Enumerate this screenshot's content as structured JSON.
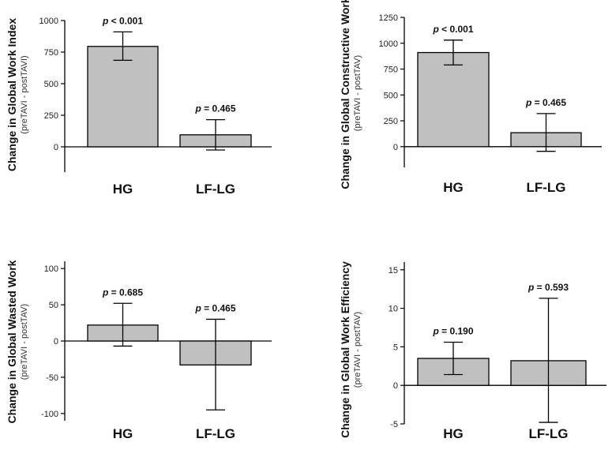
{
  "chart_data": [
    {
      "type": "bar",
      "ylabel": "Change in Global Work Index",
      "ylabel_sub": "(preTAVI - postTAVI)",
      "categories": [
        "HG",
        "LF-LG"
      ],
      "values": [
        795,
        95
      ],
      "error_low": [
        685,
        -25
      ],
      "error_high": [
        910,
        215
      ],
      "p_values": [
        "= 0.465"
      ],
      "p_labels": [
        {
          "p": "p",
          "rest": " < 0.001"
        },
        {
          "p": "p",
          "rest": " = 0.465"
        }
      ],
      "ylim": [
        -200,
        1000
      ],
      "yticks": [
        0,
        250,
        500,
        750,
        1000
      ],
      "bar_color": "#c0c0c0"
    },
    {
      "type": "bar",
      "ylabel": "Change in Global Constructive Work",
      "ylabel_sub": "(preTAVI - postTAV)",
      "categories": [
        "HG",
        "LF-LG"
      ],
      "values": [
        910,
        135
      ],
      "error_low": [
        790,
        -45
      ],
      "error_high": [
        1030,
        320
      ],
      "p_labels": [
        {
          "p": "p",
          "rest": " < 0.001"
        },
        {
          "p": "p",
          "rest": " = 0.465"
        }
      ],
      "ylim": [
        -200,
        1250
      ],
      "yticks": [
        0,
        250,
        500,
        750,
        1000,
        1250
      ],
      "bar_color": "#c0c0c0"
    },
    {
      "type": "bar",
      "ylabel": "Change in Global Wasted Work",
      "ylabel_sub": "(preTAVI - postTAV)",
      "categories": [
        "HG",
        "LF-LG"
      ],
      "values": [
        22,
        -33
      ],
      "error_low": [
        -7,
        -95
      ],
      "error_high": [
        52,
        30
      ],
      "p_labels": [
        {
          "p": "p",
          "rest": " = 0.685"
        },
        {
          "p": "p",
          "rest": " = 0.465"
        }
      ],
      "ylim": [
        -110,
        110
      ],
      "yticks": [
        -100,
        -50,
        0,
        50,
        100
      ],
      "bar_color": "#c0c0c0"
    },
    {
      "type": "bar",
      "ylabel": "Change in Global Work Efficiency",
      "ylabel_sub": "(preTAVI - postTAV)",
      "categories": [
        "HG",
        "LF-LG"
      ],
      "values": [
        3.5,
        3.2
      ],
      "error_low": [
        1.4,
        -4.8
      ],
      "error_high": [
        5.6,
        11.3
      ],
      "p_labels": [
        {
          "p": "p",
          "rest": " = 0.190"
        },
        {
          "p": "p",
          "rest": " = 0.593"
        }
      ],
      "ylim": [
        -5,
        16
      ],
      "yticks": [
        -5,
        0,
        5,
        10,
        15
      ],
      "bar_color": "#c0c0c0"
    }
  ]
}
